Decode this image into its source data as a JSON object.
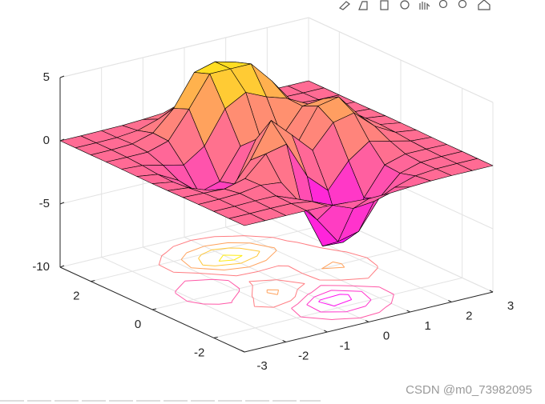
{
  "chart_data": {
    "type": "surface",
    "x": [
      -3,
      -2.5,
      -2,
      -1.5,
      -1,
      -0.5,
      0,
      0.5,
      1,
      1.5,
      2,
      2.5,
      3
    ],
    "y": [
      -3,
      -2.5,
      -2,
      -1.5,
      -1,
      -0.5,
      0,
      0.5,
      1,
      1.5,
      2,
      2.5,
      3
    ],
    "z": [
      [
        0,
        0,
        0,
        0,
        -0.03,
        -0.14,
        -0.24,
        -0.22,
        -0.11,
        -0.03,
        0,
        0,
        0
      ],
      [
        0,
        0,
        0.02,
        0,
        -0.23,
        -0.92,
        -1.57,
        -1.41,
        -0.69,
        -0.18,
        -0.03,
        0,
        0
      ],
      [
        0,
        0.01,
        0.05,
        0.05,
        -0.59,
        -2.64,
        -4.76,
        -4.35,
        -2.1,
        -0.53,
        -0.06,
        0,
        0
      ],
      [
        0,
        0.01,
        0.08,
        0.33,
        0.15,
        -2.19,
        -5.68,
        -5.76,
        -2.64,
        -0.44,
        0.04,
        0.03,
        0
      ],
      [
        -0.01,
        -0.06,
        -0.13,
        0.3,
        1.86,
        2.23,
        -0.72,
        -2.22,
        -0.27,
        0.88,
        0.5,
        0.11,
        0.01
      ],
      [
        -0.03,
        -0.2,
        -0.8,
        -1.21,
        0.8,
        3.55,
        2,
        0.39,
        2.2,
        2.56,
        1.12,
        0.24,
        0.03
      ],
      [
        -0.04,
        -0.3,
        -1.33,
        -2.77,
        -1.65,
        1.48,
        0.98,
        0.38,
        2.94,
        3.27,
        1.41,
        0.3,
        0.03
      ],
      [
        -0.03,
        -0.25,
        -1.12,
        -2.49,
        -2,
        0.39,
        0.46,
        0.37,
        2.38,
        2.56,
        1.1,
        0.23,
        0.03
      ],
      [
        -0.01,
        -0.11,
        -0.48,
        -0.86,
        0.23,
        2.79,
        3.69,
        2.94,
        2.43,
        1.58,
        0.58,
        0.11,
        0.01
      ],
      [
        0,
        -0.02,
        -0.01,
        0.48,
        2.61,
        6.2,
        8,
        6.25,
        3.25,
        1.19,
        0.29,
        0.05,
        0
      ],
      [
        0,
        0.01,
        0.08,
        0.55,
        2.1,
        4.56,
        5.86,
        4.57,
        2.21,
        0.68,
        0.13,
        0.02,
        0
      ],
      [
        0,
        0,
        0.03,
        0.19,
        0.69,
        1.47,
        1.88,
        1.47,
        0.7,
        0.2,
        0.04,
        0,
        0
      ],
      [
        0,
        0,
        0.01,
        0.03,
        0.11,
        0.23,
        0.3,
        0.23,
        0.11,
        0.03,
        0.01,
        0,
        0
      ]
    ],
    "xlim": [
      -3,
      3
    ],
    "ylim": [
      -3,
      3
    ],
    "zlim": [
      -10,
      5
    ],
    "xticks": [
      -3,
      -2,
      -1,
      0,
      1,
      2,
      3
    ],
    "yticks": [
      -2,
      0,
      2
    ],
    "zticks": [
      -10,
      -5,
      0,
      5
    ],
    "colormap": [
      "#ff00ff",
      "#ffff00"
    ],
    "edge_color": "#000000",
    "contour": true,
    "contour_levels": [
      -5,
      -3,
      -1,
      1,
      3,
      5,
      7
    ],
    "grid": true
  },
  "watermark": "CSDN @m0_73982095"
}
